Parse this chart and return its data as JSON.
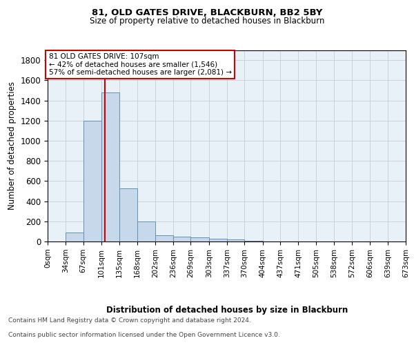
{
  "title1": "81, OLD GATES DRIVE, BLACKBURN, BB2 5BY",
  "title2": "Size of property relative to detached houses in Blackburn",
  "xlabel": "Distribution of detached houses by size in Blackburn",
  "ylabel": "Number of detached properties",
  "footer1": "Contains HM Land Registry data © Crown copyright and database right 2024.",
  "footer2": "Contains public sector information licensed under the Open Government Licence v3.0.",
  "bin_edges": [
    0,
    34,
    67,
    101,
    135,
    168,
    202,
    236,
    269,
    303,
    337,
    370,
    404,
    437,
    471,
    505,
    538,
    572,
    606,
    639,
    673
  ],
  "bar_heights": [
    0,
    90,
    1200,
    1480,
    530,
    200,
    65,
    50,
    40,
    25,
    20,
    5,
    0,
    0,
    0,
    0,
    0,
    0,
    0,
    0
  ],
  "bar_color": "#c8d8eb",
  "bar_edge_color": "#6090b8",
  "grid_color": "#cccccc",
  "bg_color": "#e8f0f8",
  "red_line_x": 107,
  "annotation_text": "81 OLD GATES DRIVE: 107sqm\n← 42% of detached houses are smaller (1,546)\n57% of semi-detached houses are larger (2,081) →",
  "annotation_box_color": "#ffffff",
  "annotation_border_color": "#cc0000",
  "ylim": [
    0,
    1900
  ],
  "xlim": [
    0,
    673
  ],
  "yticks": [
    0,
    200,
    400,
    600,
    800,
    1000,
    1200,
    1400,
    1600,
    1800
  ]
}
